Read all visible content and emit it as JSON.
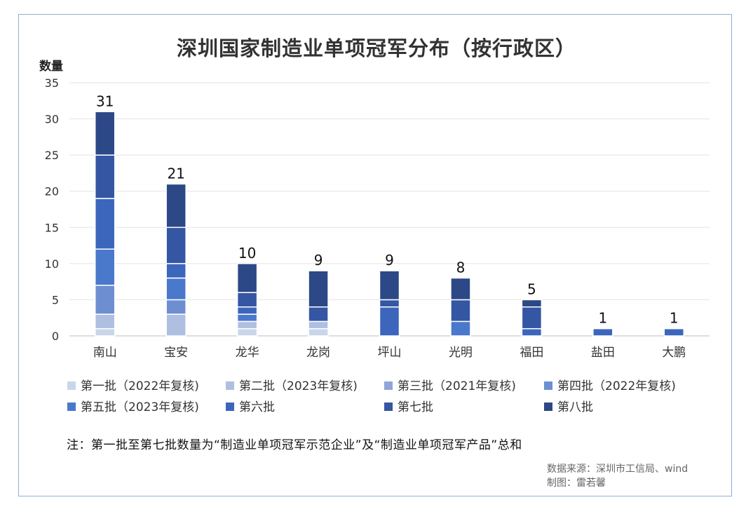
{
  "title": "深圳国家制造业单项冠军分布（按行政区）",
  "chart_data": {
    "type": "bar",
    "stacked": true,
    "title": "深圳国家制造业单项冠军分布（按行政区）",
    "ylabel": "数量",
    "xlabel": "",
    "ylim": [
      0,
      35
    ],
    "yticks": [
      0,
      5,
      10,
      15,
      20,
      25,
      30,
      35
    ],
    "grid": true,
    "legend_position": "bottom",
    "categories": [
      "南山",
      "宝安",
      "龙华",
      "龙岗",
      "坪山",
      "光明",
      "福田",
      "盐田",
      "大鹏"
    ],
    "totals": [
      31,
      21,
      10,
      9,
      9,
      8,
      5,
      1,
      1
    ],
    "series": [
      {
        "name": "第一批（2022年复核)",
        "color": "#c9d6ea",
        "values": [
          1,
          0,
          1,
          1,
          0,
          0,
          0,
          0,
          0
        ]
      },
      {
        "name": "第二批（2023年复核)",
        "color": "#aebfe2",
        "values": [
          2,
          3,
          1,
          1,
          0,
          0,
          0,
          0,
          0
        ]
      },
      {
        "name": "第三批（2021年复核)",
        "color": "#8fa6d9",
        "values": [
          0,
          0,
          0,
          0,
          0,
          0,
          0,
          0,
          0
        ]
      },
      {
        "name": "第四批（2022年复核)",
        "color": "#6d8fd2",
        "values": [
          4,
          2,
          0,
          0,
          0,
          0,
          0,
          0,
          0
        ]
      },
      {
        "name": "第五批（2023年复核)",
        "color": "#4a78cb",
        "values": [
          5,
          3,
          1,
          0,
          0,
          2,
          0,
          0,
          0
        ]
      },
      {
        "name": "第六批",
        "color": "#3c66bb",
        "values": [
          7,
          2,
          1,
          0,
          4,
          0,
          1,
          1,
          1
        ]
      },
      {
        "name": "第七批",
        "color": "#3456a3",
        "values": [
          6,
          5,
          2,
          2,
          1,
          3,
          3,
          0,
          0
        ]
      },
      {
        "name": "第八批",
        "color": "#2c4886",
        "values": [
          6,
          6,
          4,
          5,
          4,
          3,
          1,
          0,
          0
        ]
      }
    ]
  },
  "note": "注：第一批至第七批数量为“制造业单项冠军示范企业”及“制造业单项冠军产品”总和",
  "source_line1": "数据来源：深圳市工信局、wind",
  "source_line2": "制图：雷若馨"
}
